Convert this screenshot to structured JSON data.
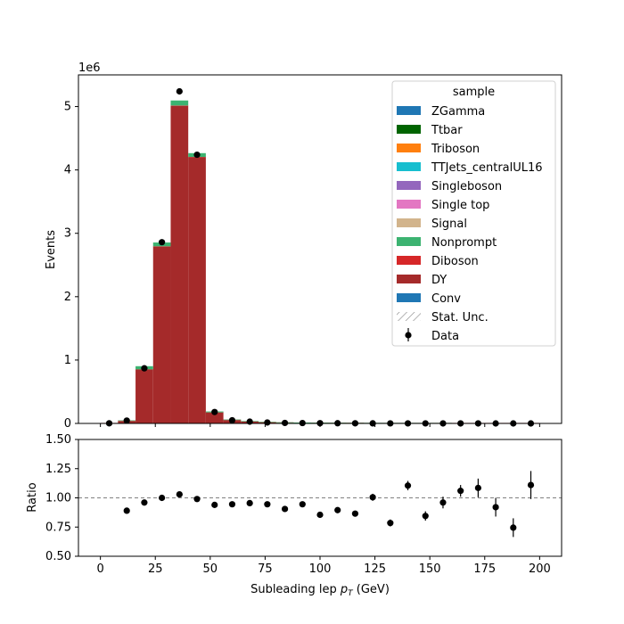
{
  "chart_data": [
    {
      "type": "bar",
      "stacked": true,
      "xlabel_prefix": "Subleading lep ",
      "xlabel_var": "p",
      "xlabel_sub": "T",
      "xlabel_suffix": " (GeV)",
      "ylabel": "Events",
      "scale_label": "1e6",
      "xlim": [
        -10,
        210
      ],
      "ylim": [
        0,
        5.5
      ],
      "y_scale": 1000000,
      "yticks": [
        0,
        1,
        2,
        3,
        4,
        5
      ],
      "bin_edges": [
        0,
        8,
        16,
        24,
        32,
        40,
        48,
        56,
        64,
        72,
        80,
        88,
        96,
        104,
        112,
        120,
        128,
        136,
        144,
        152,
        160,
        168,
        176,
        184,
        192,
        200
      ],
      "legend_title": "sample",
      "legend_position": "top-right",
      "series": [
        {
          "name": "ZGamma",
          "color": "#1f77b4",
          "values": [
            0,
            0,
            0,
            0,
            0,
            0,
            0,
            0,
            0,
            0,
            0,
            0,
            0,
            0,
            0,
            0,
            0,
            0,
            0,
            0,
            0,
            0,
            0,
            0,
            0
          ]
        },
        {
          "name": "Ttbar",
          "color": "#006400",
          "values": [
            0,
            0,
            0,
            0,
            0,
            0,
            0,
            0,
            0,
            0,
            0,
            0,
            0,
            0,
            0,
            0,
            0,
            0,
            0,
            0,
            0,
            0,
            0,
            0,
            0
          ]
        },
        {
          "name": "Triboson",
          "color": "#ff7f0e",
          "values": [
            0,
            0,
            0,
            0,
            0,
            0,
            0,
            0,
            0,
            0,
            0,
            0,
            0,
            0,
            0,
            0,
            0,
            0,
            0,
            0,
            0,
            0,
            0,
            0,
            0
          ]
        },
        {
          "name": "TTJets_centralUL16",
          "color": "#17becf",
          "values": [
            0,
            0,
            0,
            0,
            0,
            0,
            0,
            0,
            0,
            0,
            0,
            0,
            0,
            0,
            0,
            0,
            0,
            0,
            0,
            0,
            0,
            0,
            0,
            0,
            0
          ]
        },
        {
          "name": "Singleboson",
          "color": "#9467bd",
          "values": [
            0,
            0,
            0,
            0,
            0,
            0,
            0,
            0,
            0,
            0,
            0,
            0,
            0,
            0,
            0,
            0,
            0,
            0,
            0,
            0,
            0,
            0,
            0,
            0,
            0
          ]
        },
        {
          "name": "Single top",
          "color": "#e377c2",
          "values": [
            0,
            0,
            0,
            0,
            0,
            0,
            0,
            0,
            0,
            0,
            0,
            0,
            0,
            0,
            0,
            0,
            0,
            0,
            0,
            0,
            0,
            0,
            0,
            0,
            0
          ]
        },
        {
          "name": "Signal",
          "color": "#d2b48c",
          "values": [
            0,
            0,
            0,
            0,
            0,
            0,
            0,
            0,
            0,
            0,
            0,
            0,
            0,
            0,
            0,
            0,
            0,
            0,
            0,
            0,
            0,
            0,
            0,
            0,
            0
          ]
        },
        {
          "name": "Nonprompt",
          "color": "#3cb371",
          "values": [
            0,
            0.003,
            0.05,
            0.06,
            0.08,
            0.06,
            0.015,
            0.004,
            0.002,
            0.001,
            0.0005,
            0.0004,
            0.0003,
            0.0002,
            0.0002,
            0.0001,
            0.0001,
            0.0001,
            0.0001,
            0.0001,
            0,
            0,
            0,
            0,
            0
          ]
        },
        {
          "name": "Diboson",
          "color": "#d62728",
          "values": [
            0,
            0.001,
            0.003,
            0.005,
            0.006,
            0.005,
            0.002,
            0.001,
            0.0005,
            0.0003,
            0.0002,
            0.0001,
            0.0001,
            0.0001,
            0.0001,
            0,
            0,
            0,
            0,
            0,
            0,
            0,
            0,
            0,
            0
          ]
        },
        {
          "name": "DY",
          "color": "#a52a2a",
          "values": [
            0.002,
            0.038,
            0.85,
            2.79,
            5.01,
            4.2,
            0.172,
            0.052,
            0.028,
            0.016,
            0.009,
            0.006,
            0.004,
            0.003,
            0.002,
            0.0015,
            0.001,
            0.0008,
            0.0006,
            0.0005,
            0.0004,
            0.0003,
            0.0002,
            0.0002,
            0.0001
          ]
        },
        {
          "name": "Conv",
          "color": "#1f77b4",
          "values": [
            0,
            0,
            0,
            0,
            0,
            0,
            0,
            0,
            0,
            0,
            0,
            0,
            0,
            0,
            0,
            0,
            0,
            0,
            0,
            0,
            0,
            0,
            0,
            0,
            0
          ]
        }
      ],
      "uncertainty_label": "Stat. Unc.",
      "data_label": "Data",
      "data_points": {
        "x": [
          4,
          12,
          20,
          28,
          36,
          44,
          52,
          60,
          68,
          76,
          84,
          92,
          100,
          108,
          116,
          124,
          132,
          140,
          148,
          156,
          164,
          172,
          180,
          188,
          196
        ],
        "y": [
          0.002,
          0.045,
          0.87,
          2.86,
          5.24,
          4.24,
          0.18,
          0.05,
          0.028,
          0.015,
          0.008,
          0.006,
          0.004,
          0.003,
          0.002,
          0.0015,
          0.001,
          0.0009,
          0.0006,
          0.0005,
          0.0004,
          0.0003,
          0.0002,
          0.0002,
          0.0001
        ]
      }
    },
    {
      "type": "scatter",
      "ylabel": "Ratio",
      "xlim": [
        -10,
        210
      ],
      "ylim": [
        0.5,
        1.5
      ],
      "xticks": [
        0,
        25,
        50,
        75,
        100,
        125,
        150,
        175,
        200
      ],
      "yticks": [
        "0.50",
        "0.75",
        "1.00",
        "1.25",
        "1.50"
      ],
      "reference_line": 1.0,
      "x": [
        12,
        20,
        28,
        36,
        44,
        52,
        60,
        68,
        76,
        84,
        92,
        100,
        108,
        116,
        124,
        132,
        140,
        148,
        156,
        164,
        172,
        180,
        188,
        196
      ],
      "y": [
        0.89,
        0.96,
        1.0,
        1.03,
        0.99,
        0.94,
        0.945,
        0.955,
        0.945,
        0.905,
        0.945,
        0.855,
        0.895,
        0.865,
        1.005,
        0.785,
        1.105,
        0.845,
        0.96,
        1.06,
        1.085,
        0.92,
        0.745,
        1.11
      ],
      "err": [
        0.005,
        0.003,
        0.002,
        0.002,
        0.002,
        0.005,
        0.008,
        0.01,
        0.012,
        0.015,
        0.018,
        0.02,
        0.022,
        0.025,
        0.03,
        0.03,
        0.04,
        0.04,
        0.05,
        0.05,
        0.08,
        0.08,
        0.08,
        0.12
      ]
    }
  ]
}
